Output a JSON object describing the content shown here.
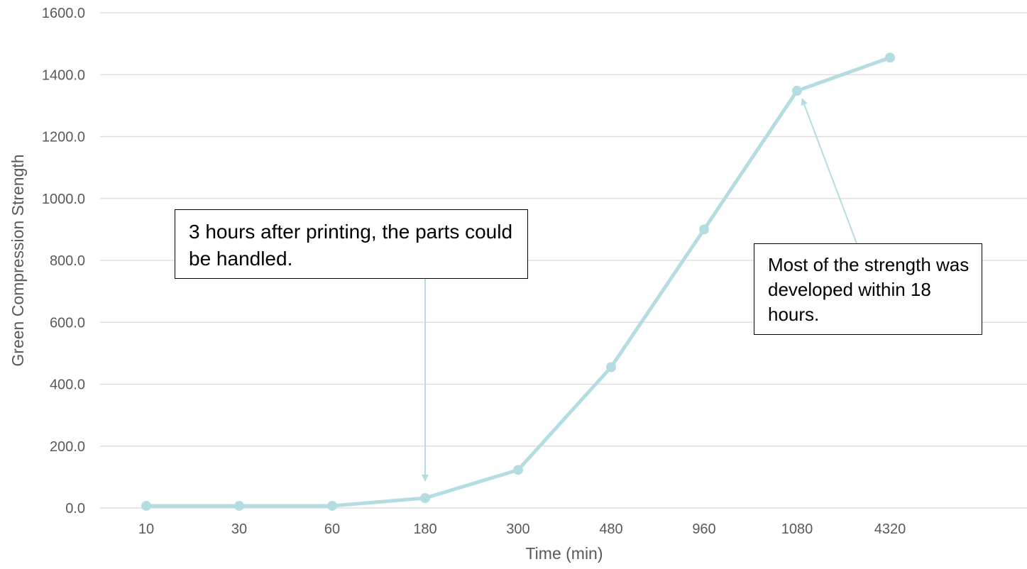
{
  "chart_data": {
    "type": "line",
    "xlabel": "Time (min)",
    "ylabel": "Green Compression Strength",
    "categories": [
      "10",
      "30",
      "60",
      "180",
      "300",
      "480",
      "960",
      "1080",
      "4320"
    ],
    "series": [
      {
        "values": [
          7,
          7,
          7,
          32,
          123,
          455,
          900,
          1348,
          1455
        ]
      }
    ],
    "ylim": [
      0,
      1600
    ],
    "yticks": [
      "0.0",
      "200.0",
      "400.0",
      "600.0",
      "800.0",
      "1000.0",
      "1200.0",
      "1400.0",
      "1600.0"
    ],
    "grid": true,
    "legend": "none",
    "annotations": [
      {
        "text": "3 hours after printing, the parts could be handled.",
        "target_category": "180"
      },
      {
        "text": "Most of the strength was developed within 18 hours.",
        "target_category": "1080"
      }
    ]
  },
  "colors": {
    "series": "#b4dde2",
    "arrow": "#b4dde2",
    "grid": "#d9d9d9",
    "text": "#595959"
  }
}
